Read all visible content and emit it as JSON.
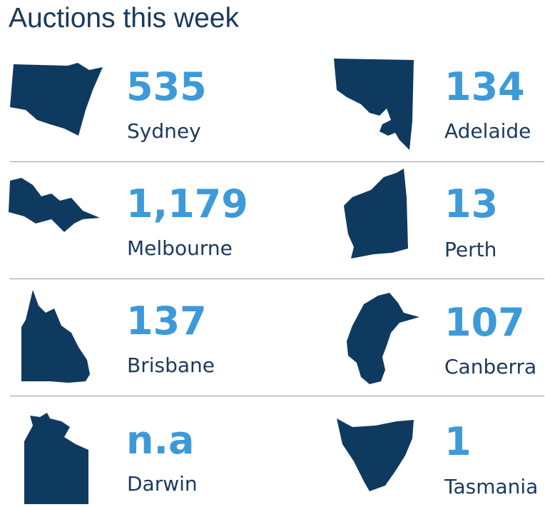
{
  "title": "Auctions this week",
  "colors": {
    "title": "#1a3a5c",
    "number": "#3d9ad8",
    "city": "#1a3a5c",
    "map": "#0f3a60",
    "divider": "#9a9a9a"
  },
  "cities": [
    {
      "name": "Sydney",
      "count": "535",
      "state_icon": "nsw-map-icon"
    },
    {
      "name": "Adelaide",
      "count": "134",
      "state_icon": "sa-map-icon"
    },
    {
      "name": "Melbourne",
      "count": "1,179",
      "state_icon": "vic-map-icon"
    },
    {
      "name": "Perth",
      "count": "13",
      "state_icon": "wa-map-icon"
    },
    {
      "name": "Brisbane",
      "count": "137",
      "state_icon": "qld-map-icon"
    },
    {
      "name": "Canberra",
      "count": "107",
      "state_icon": "act-map-icon"
    },
    {
      "name": "Darwin",
      "count": "n.a",
      "state_icon": "nt-map-icon"
    },
    {
      "name": "Tasmania",
      "count": "1",
      "state_icon": "tas-map-icon"
    }
  ]
}
